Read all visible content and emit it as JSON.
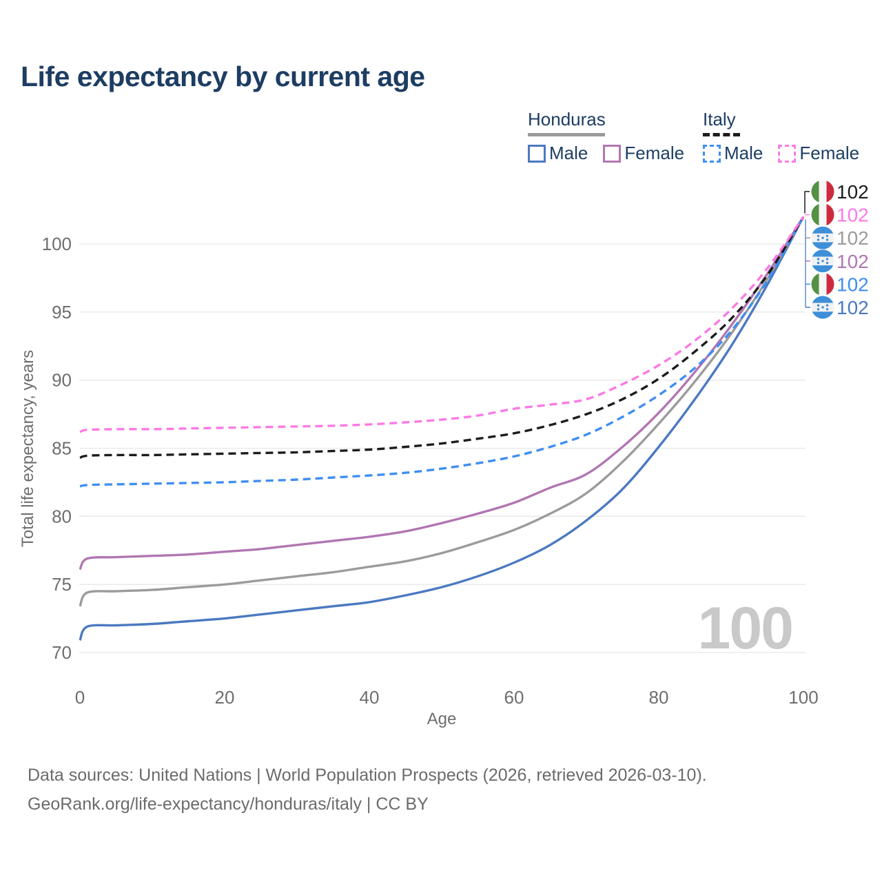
{
  "title": "Life expectancy by current age",
  "legend": {
    "groups": [
      {
        "label": "Honduras",
        "line_style": "solid",
        "underline_color": "#9b9b9b",
        "items": [
          {
            "label": "Male",
            "color": "#4b79c1"
          },
          {
            "label": "Female",
            "color": "#b176b1"
          }
        ]
      },
      {
        "label": "Italy",
        "line_style": "dashed",
        "underline_color": "#1c1c1c",
        "items": [
          {
            "label": "Male",
            "color": "#3f8ef2"
          },
          {
            "label": "Female",
            "color": "#fb7ae4"
          }
        ]
      }
    ]
  },
  "chart_data": {
    "type": "line",
    "title": "Life expectancy by current age",
    "xlabel": "Age",
    "ylabel": "Total life expectancy, years",
    "xlim": [
      0,
      100
    ],
    "ylim": [
      70,
      103
    ],
    "x_ticks": [
      0,
      20,
      40,
      60,
      80,
      100
    ],
    "y_ticks": [
      70,
      75,
      80,
      85,
      90,
      95,
      100
    ],
    "grid": "horizontal",
    "legend_position": "top-right",
    "watermark": "100",
    "x": [
      0,
      1,
      5,
      10,
      15,
      20,
      25,
      30,
      35,
      40,
      45,
      50,
      55,
      60,
      65,
      70,
      75,
      80,
      85,
      90,
      95,
      100
    ],
    "series": [
      {
        "name": "Honduras Male",
        "country": "Honduras",
        "sex": "Male",
        "color": "#4b79c1",
        "dash": "solid",
        "values": [
          70.9,
          71.9,
          72.0,
          72.1,
          72.3,
          72.5,
          72.8,
          73.1,
          73.4,
          73.7,
          74.2,
          74.8,
          75.6,
          76.6,
          77.9,
          79.7,
          82.0,
          85.1,
          88.6,
          92.5,
          97.0,
          102
        ]
      },
      {
        "name": "Honduras",
        "country": "Honduras",
        "sex": "All",
        "color": "#9b9b9b",
        "dash": "solid",
        "values": [
          73.4,
          74.4,
          74.5,
          74.6,
          74.8,
          75.0,
          75.3,
          75.6,
          75.9,
          76.3,
          76.7,
          77.3,
          78.1,
          79.0,
          80.2,
          81.7,
          84.0,
          86.8,
          89.9,
          93.4,
          97.4,
          102
        ]
      },
      {
        "name": "Honduras Female",
        "country": "Honduras",
        "sex": "Female",
        "color": "#b176b1",
        "dash": "solid",
        "values": [
          76.1,
          76.9,
          77.0,
          77.1,
          77.2,
          77.4,
          77.6,
          77.9,
          78.2,
          78.5,
          78.9,
          79.5,
          80.2,
          81.0,
          82.1,
          83.1,
          85.1,
          87.6,
          90.6,
          94.0,
          97.8,
          102
        ]
      },
      {
        "name": "Italy Male",
        "country": "Italy",
        "sex": "Male",
        "color": "#3f8ef2",
        "dash": "dashed",
        "values": [
          82.2,
          82.3,
          82.35,
          82.4,
          82.45,
          82.5,
          82.6,
          82.7,
          82.85,
          83.0,
          83.2,
          83.5,
          83.9,
          84.4,
          85.1,
          86.0,
          87.3,
          88.9,
          90.9,
          93.6,
          97.3,
          102
        ]
      },
      {
        "name": "Italy",
        "country": "Italy",
        "sex": "All",
        "color": "#1c1c1c",
        "dash": "dashed",
        "values": [
          84.3,
          84.45,
          84.5,
          84.5,
          84.55,
          84.6,
          84.65,
          84.7,
          84.8,
          84.9,
          85.1,
          85.35,
          85.7,
          86.1,
          86.7,
          87.5,
          88.6,
          90.1,
          92.1,
          94.5,
          97.7,
          102
        ]
      },
      {
        "name": "Italy Female",
        "country": "Italy",
        "sex": "Female",
        "color": "#fb7ae4",
        "dash": "dashed",
        "values": [
          86.2,
          86.35,
          86.4,
          86.4,
          86.45,
          86.5,
          86.55,
          86.6,
          86.65,
          86.75,
          86.9,
          87.1,
          87.4,
          87.9,
          88.2,
          88.6,
          89.7,
          91.1,
          92.9,
          95.2,
          98.2,
          102
        ]
      }
    ],
    "end_labels": [
      {
        "flag": "italy",
        "series": "Italy",
        "value": "102",
        "color": "#1c1c1c"
      },
      {
        "flag": "italy",
        "series": "Italy Female",
        "value": "102",
        "color": "#fb7ae4"
      },
      {
        "flag": "honduras",
        "series": "Honduras",
        "value": "102",
        "color": "#9b9b9b"
      },
      {
        "flag": "honduras",
        "series": "Honduras Female",
        "value": "102",
        "color": "#b176b1"
      },
      {
        "flag": "italy",
        "series": "Italy Male",
        "value": "102",
        "color": "#3f8ef2"
      },
      {
        "flag": "honduras",
        "series": "Honduras Male",
        "value": "102",
        "color": "#4b79c1"
      }
    ],
    "flag_colors": {
      "italy_green": "#559144",
      "italy_white": "#f6f6f6",
      "italy_red": "#cd2b3d",
      "honduras_blue": "#3e8fd8",
      "honduras_white": "#f2f2f2"
    }
  },
  "footer": {
    "line1": "Data sources: United Nations | World Population Prospects (2026, retrieved 2026-03-10).",
    "line2": "GeoRank.org/life-expectancy/honduras/italy | CC BY"
  }
}
